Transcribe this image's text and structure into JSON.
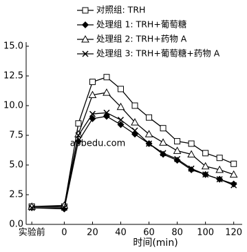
{
  "chart_data": {
    "type": "line",
    "x_label": "时间(min)",
    "watermark": "aobedu.com",
    "x": [
      -23,
      0,
      10,
      20,
      30,
      40,
      50,
      60,
      70,
      80,
      90,
      100,
      110,
      120
    ],
    "xlim": [
      -27,
      126
    ],
    "xticks": [
      {
        "value": -23,
        "label": "实验前"
      },
      0,
      20,
      40,
      60,
      80,
      100,
      120
    ],
    "ylim": [
      0,
      15
    ],
    "yticks": [
      {
        "value": 0,
        "label": "0.0"
      },
      2.5,
      {
        "value": 5,
        "label": "5.0"
      },
      7.5,
      {
        "value": 10,
        "label": "10.0"
      },
      12.5,
      {
        "value": 15,
        "label": "15.0"
      }
    ],
    "series": [
      {
        "name": "对照组: TRH",
        "color": "#000000",
        "marker": "square-open",
        "values": [
          1.5,
          1.5,
          8.5,
          12.0,
          12.4,
          11.4,
          10.0,
          9.0,
          8.1,
          7.0,
          6.8,
          6.0,
          5.6,
          5.1
        ]
      },
      {
        "name": "处理组 1: TRH+葡萄糖",
        "color": "#000000",
        "marker": "diamond-filled",
        "values": [
          1.4,
          1.3,
          7.0,
          8.9,
          9.1,
          8.4,
          7.6,
          6.8,
          5.9,
          5.4,
          4.6,
          4.2,
          3.8,
          3.4
        ]
      },
      {
        "name": "处理组 2: TRH+药物 A",
        "color": "#000000",
        "marker": "triangle-open",
        "values": [
          1.5,
          1.6,
          7.6,
          10.9,
          11.1,
          9.9,
          8.6,
          7.6,
          6.9,
          6.2,
          5.9,
          4.9,
          4.6,
          4.2
        ]
      },
      {
        "name": "处理组 3: TRH+葡萄糖+药物 A",
        "color": "#000000",
        "marker": "cross",
        "values": [
          1.4,
          1.4,
          7.5,
          9.3,
          9.4,
          8.8,
          7.9,
          6.8,
          6.0,
          5.5,
          4.7,
          4.2,
          3.8,
          3.3
        ]
      }
    ]
  }
}
